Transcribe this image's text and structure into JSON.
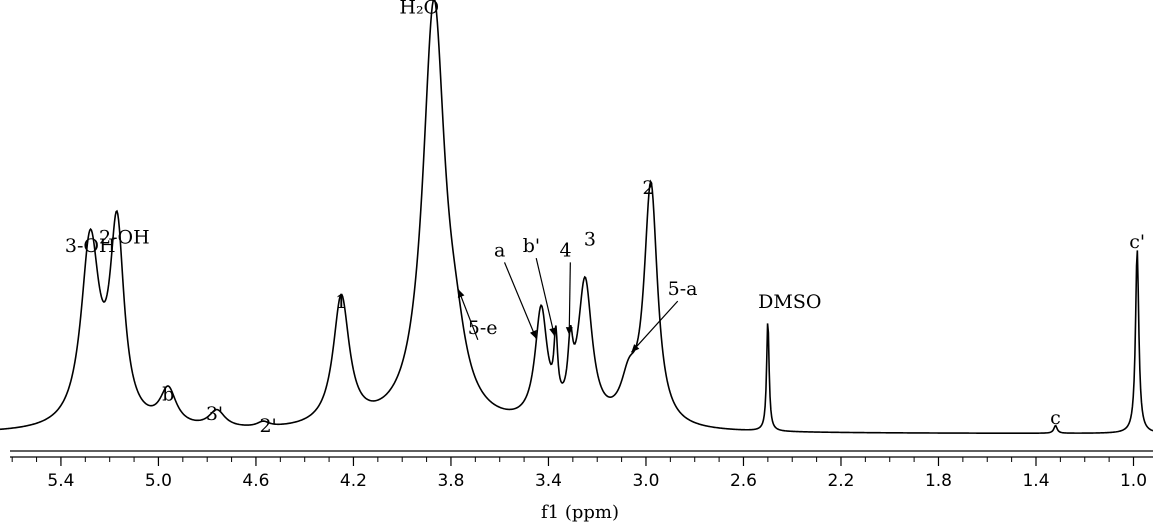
{
  "chart_data": {
    "type": "line",
    "title": "",
    "xlabel": "f1 (ppm)",
    "ylabel": "",
    "xlim": [
      5.65,
      0.92
    ],
    "x_reversed": true,
    "ylim": [
      0,
      1
    ],
    "xticks": [
      5.4,
      5.0,
      4.6,
      4.2,
      3.8,
      3.4,
      3.0,
      2.6,
      2.2,
      1.8,
      1.4,
      1.0
    ],
    "xtick_labels": [
      "5.4",
      "5.0",
      "4.6",
      "4.2",
      "3.8",
      "3.4",
      "3.0",
      "2.6",
      "2.2",
      "1.8",
      "1.4",
      "1.0"
    ],
    "baseline": 0.026,
    "peaks": [
      {
        "label": "3-OH",
        "ppm": 5.28,
        "height": 0.43,
        "width": 0.045
      },
      {
        "label": "2-OH",
        "ppm": 5.17,
        "height": 0.45,
        "width": 0.035
      },
      {
        "label": "b",
        "ppm": 4.96,
        "height": 0.085,
        "width": 0.04
      },
      {
        "label": "3'",
        "ppm": 4.76,
        "height": 0.04,
        "width": 0.04
      },
      {
        "label": "2'",
        "ppm": 4.57,
        "height": 0.012,
        "width": 0.03
      },
      {
        "label": "1",
        "ppm": 4.25,
        "height": 0.3,
        "width": 0.04
      },
      {
        "label": "H₂O",
        "ppm": 3.87,
        "height": 0.98,
        "width": 0.055
      },
      {
        "label": "5-e",
        "ppm": 3.78,
        "height": 0.1,
        "width": 0.05
      },
      {
        "label": "a",
        "ppm": 3.43,
        "height": 0.26,
        "width": 0.03
      },
      {
        "label": "b'",
        "ppm": 3.37,
        "height": 0.15,
        "width": 0.009
      },
      {
        "label": "4",
        "ppm": 3.31,
        "height": 0.13,
        "width": 0.012
      },
      {
        "label": "3",
        "ppm": 3.25,
        "height": 0.33,
        "width": 0.035
      },
      {
        "label": "5-a",
        "ppm": 3.07,
        "height": 0.09,
        "width": 0.04
      },
      {
        "label": "2",
        "ppm": 2.98,
        "height": 0.56,
        "width": 0.033
      },
      {
        "label": "DMSO",
        "ppm": 2.5,
        "height": 0.26,
        "width": 0.006
      },
      {
        "label": "c",
        "ppm": 1.32,
        "height": 0.018,
        "width": 0.008
      },
      {
        "label": "c'",
        "ppm": 0.985,
        "height": 0.43,
        "width": 0.008
      }
    ],
    "peak_labels": [
      {
        "text": "3-OH",
        "ppm": 5.28,
        "height": 0.43,
        "arrow": false
      },
      {
        "text": "2-OH",
        "ppm": 5.14,
        "height": 0.45,
        "arrow": false
      },
      {
        "text": "b",
        "ppm": 4.96,
        "height": 0.085,
        "arrow": false
      },
      {
        "text": "3'",
        "ppm": 4.77,
        "height": 0.04,
        "arrow": false
      },
      {
        "text": "2'",
        "ppm": 4.55,
        "height": 0.012,
        "arrow": false
      },
      {
        "text": "1",
        "ppm": 4.25,
        "height": 0.3,
        "arrow": false
      },
      {
        "text": "H₂O",
        "ppm": 3.93,
        "height": 0.985,
        "arrow": false
      },
      {
        "text": "5-e",
        "ppm": 3.67,
        "height": 0.24,
        "arrow": true,
        "target_ppm": 3.77
      },
      {
        "text": "a",
        "ppm": 3.6,
        "height": 0.42,
        "arrow": true,
        "target_ppm": 3.45
      },
      {
        "text": "b'",
        "ppm": 3.47,
        "height": 0.43,
        "arrow": true,
        "target_ppm": 3.375
      },
      {
        "text": "4",
        "ppm": 3.33,
        "height": 0.42,
        "arrow": true,
        "target_ppm": 3.315
      },
      {
        "text": "3",
        "ppm": 3.23,
        "height": 0.445,
        "arrow": false
      },
      {
        "text": "5-a",
        "ppm": 2.85,
        "height": 0.33,
        "arrow": true,
        "target_ppm": 3.06
      },
      {
        "text": "2",
        "ppm": 2.99,
        "height": 0.565,
        "arrow": false
      },
      {
        "text": "DMSO",
        "ppm": 2.41,
        "height": 0.3,
        "arrow": false
      },
      {
        "text": "c",
        "ppm": 1.32,
        "height": 0.03,
        "arrow": false
      },
      {
        "text": "c'",
        "ppm": 0.985,
        "height": 0.44,
        "arrow": false
      }
    ]
  }
}
